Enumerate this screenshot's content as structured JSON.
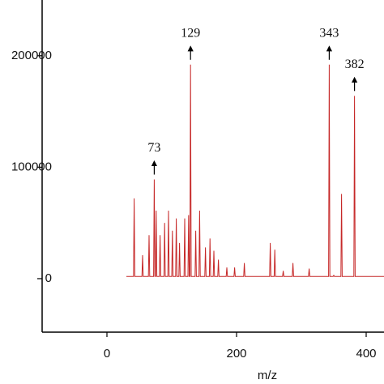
{
  "chart_data": {
    "type": "line",
    "x_label": "m/z",
    "xlim": [
      -100,
      428
    ],
    "ylim": [
      -48000,
      250000
    ],
    "xticks": [
      0,
      200,
      400
    ],
    "yticks": [
      0,
      100000,
      200000
    ],
    "series": [
      {
        "color": "#c62828",
        "x": [
          30,
          41,
          42,
          43,
          54,
          55,
          56,
          64,
          65,
          66,
          72,
          73,
          74,
          75,
          76,
          77,
          81,
          82,
          83,
          88,
          89,
          90,
          94,
          95,
          96,
          100,
          101,
          102,
          106,
          107,
          108,
          111,
          112,
          113,
          119,
          120,
          121,
          125,
          126,
          127,
          128,
          129,
          130,
          136,
          137,
          138,
          142,
          143,
          144,
          151,
          152,
          153,
          158,
          159,
          160,
          164,
          165,
          166,
          171,
          172,
          173,
          184,
          185,
          186,
          196,
          197,
          198,
          211,
          212,
          213,
          251,
          252,
          253,
          258,
          259,
          260,
          271,
          272,
          273,
          286,
          287,
          288,
          311,
          312,
          313,
          342,
          343,
          344,
          349,
          350,
          351,
          361,
          362,
          363,
          381,
          382,
          383,
          428
        ],
        "values": [
          2000,
          2000,
          72000,
          2000,
          2000,
          21000,
          2000,
          2000,
          39000,
          2000,
          2000,
          89000,
          2000,
          2000,
          61000,
          2000,
          2000,
          39000,
          2000,
          2000,
          50000,
          2000,
          2000,
          61000,
          2000,
          2000,
          43000,
          2000,
          2000,
          54000,
          2000,
          2000,
          32000,
          2000,
          2000,
          54000,
          2000,
          2000,
          57000,
          2000,
          2000,
          192000,
          2000,
          2000,
          43000,
          2000,
          2000,
          61000,
          2000,
          2000,
          28000,
          2000,
          2000,
          36000,
          2000,
          2000,
          25000,
          2000,
          2000,
          17000,
          2000,
          2000,
          10000,
          2000,
          2000,
          10000,
          2000,
          2000,
          14000,
          2000,
          2000,
          32000,
          2000,
          2000,
          26000,
          2000,
          2000,
          7000,
          2000,
          2000,
          14000,
          2000,
          2000,
          9000,
          2000,
          2000,
          192000,
          2000,
          2000,
          3000,
          2000,
          2000,
          76000,
          2000,
          2000,
          164000,
          2000,
          2000
        ]
      }
    ],
    "annotations": [
      {
        "text": "73",
        "x": 73,
        "y": 89000
      },
      {
        "text": "129",
        "x": 129,
        "y": 192000
      },
      {
        "text": "343",
        "x": 343,
        "y": 192000
      },
      {
        "text": "382",
        "x": 382,
        "y": 164000
      }
    ]
  }
}
